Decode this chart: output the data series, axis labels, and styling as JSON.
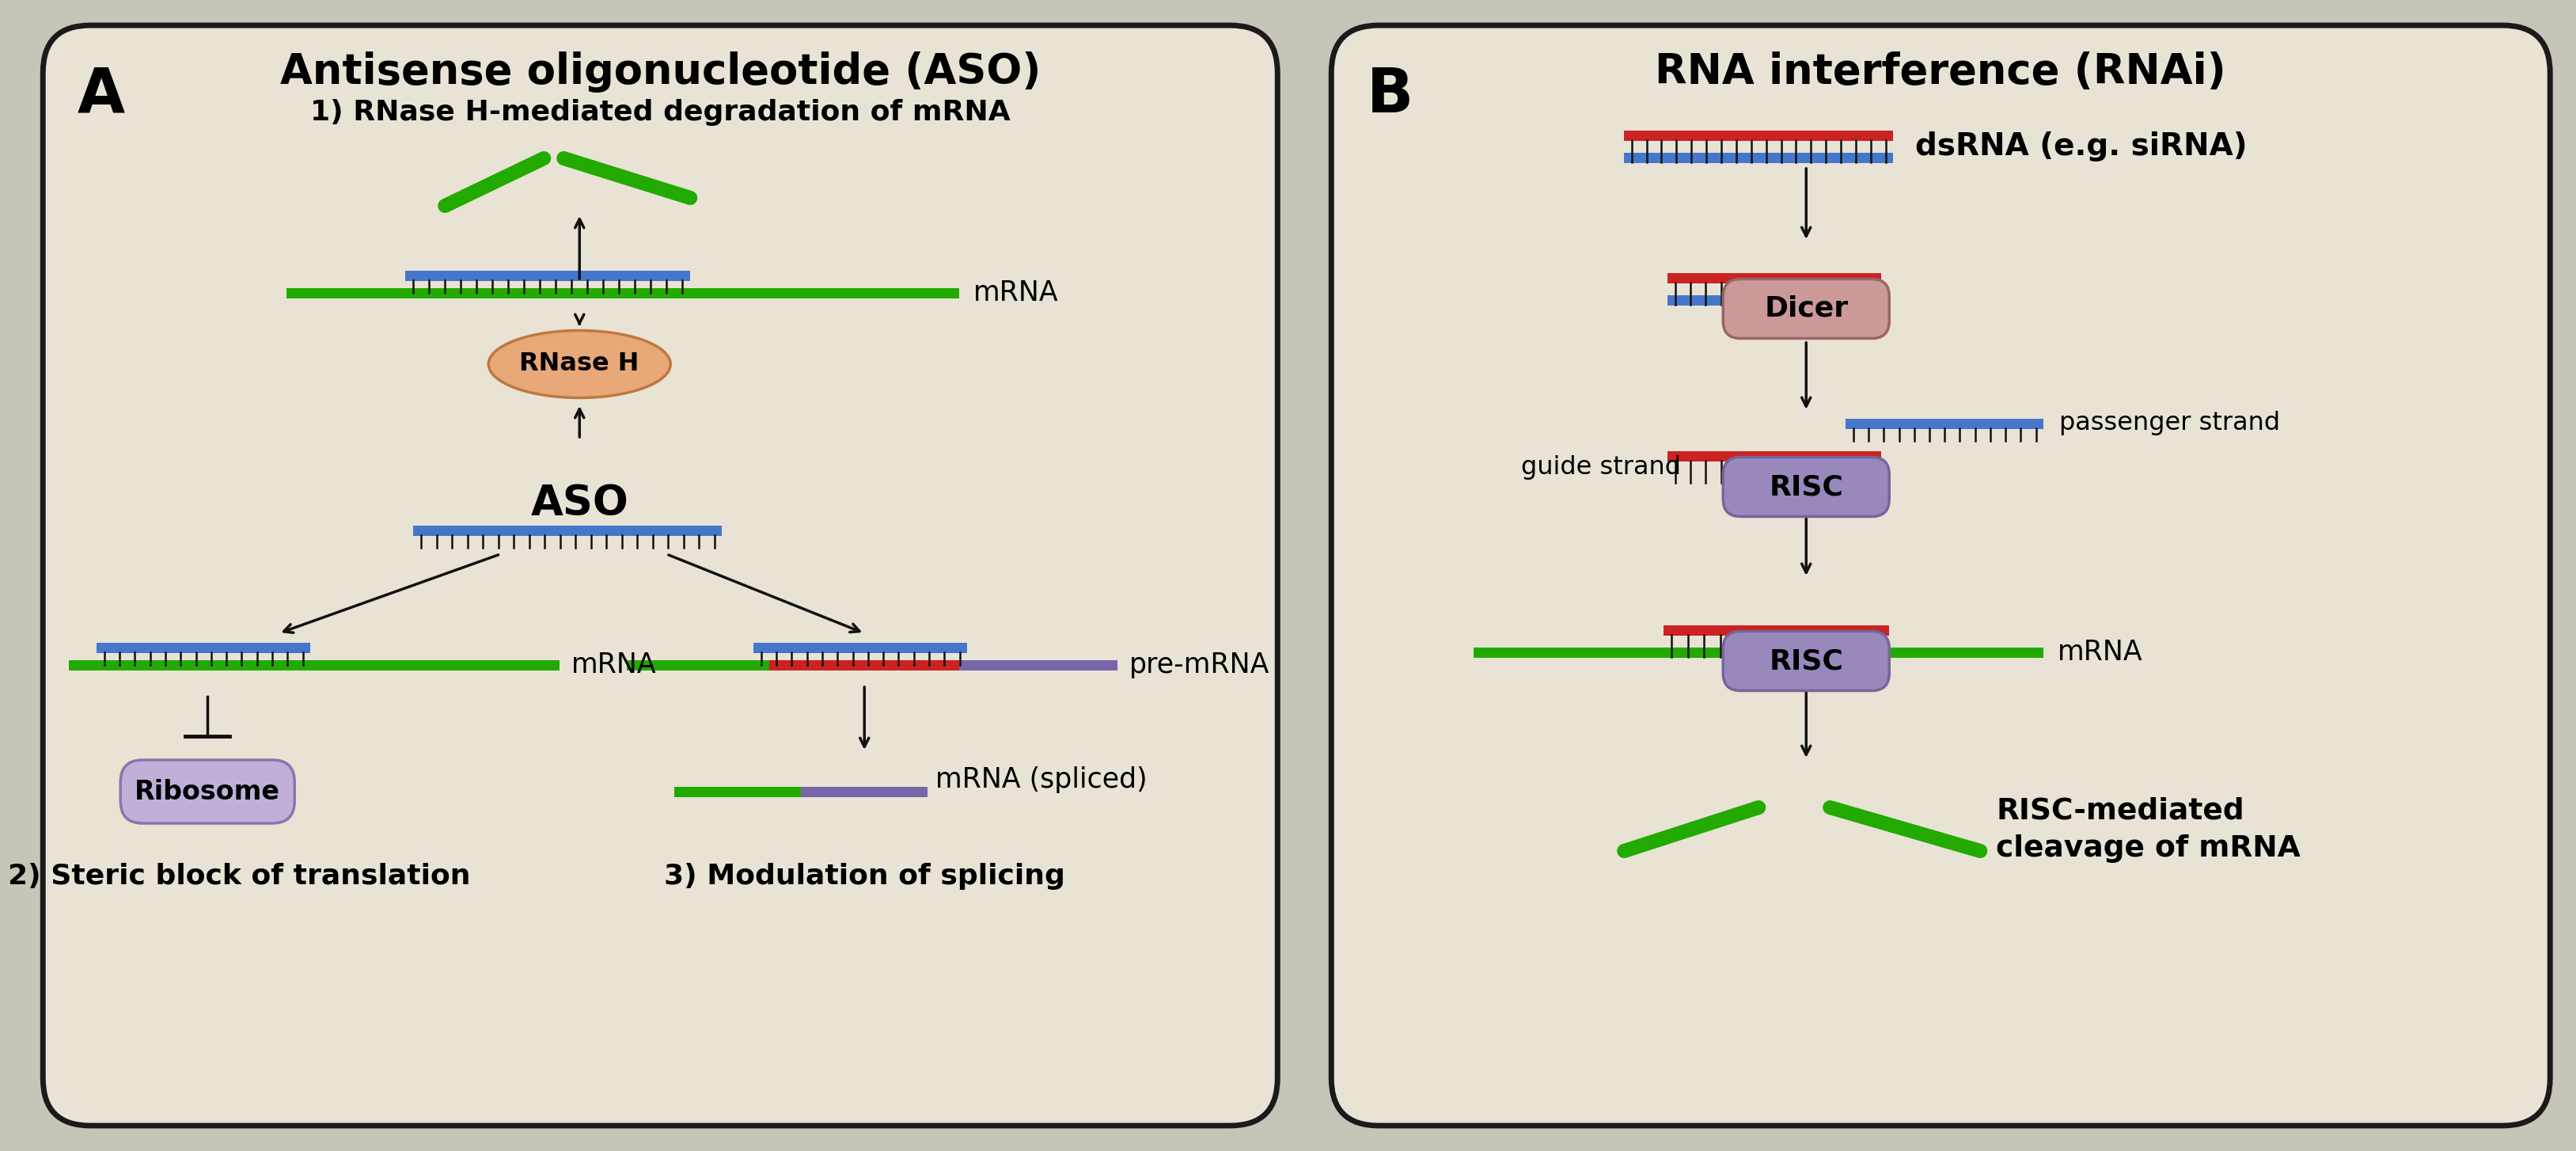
{
  "bg_color": "#e8e3d5",
  "outer_bg": "#c8c4b8",
  "border_color": "#1a1a1a",
  "green": "#22aa00",
  "blue": "#4477cc",
  "red": "#cc2222",
  "purple": "#7766aa",
  "black": "#111111",
  "orange_fill": "#e8a878",
  "orange_border": "#c07840",
  "ribosome_fill": "#c0b0d8",
  "ribosome_border": "#8877aa",
  "dicer_fill": "#cc9999",
  "dicer_border": "#996666",
  "risc_fill": "#9988bb",
  "risc_border": "#776699",
  "title_A": "Antisense oligonucleotide (ASO)",
  "title_B": "RNA interference (RNAi)",
  "label_A": "A",
  "label_B": "B",
  "section1": "1) RNase H-mediated degradation of mRNA",
  "section2": "2) Steric block of translation",
  "section3": "3) Modulation of splicing",
  "label_mRNA": "mRNA",
  "label_ASO": "ASO",
  "label_RNaseH": "RNase H",
  "label_ribosome": "Ribosome",
  "label_premRNA": "pre-mRNA",
  "label_mRNA_spliced": "mRNA (spliced)",
  "label_dsRNA": "dsRNA (e.g. siRNA)",
  "label_dicer": "Dicer",
  "label_guide": "guide strand",
  "label_passenger": "passenger strand",
  "label_RISC": "RISC",
  "label_mRNA_B": "mRNA",
  "label_cleavage": "RISC-mediated\ncleavage of mRNA"
}
